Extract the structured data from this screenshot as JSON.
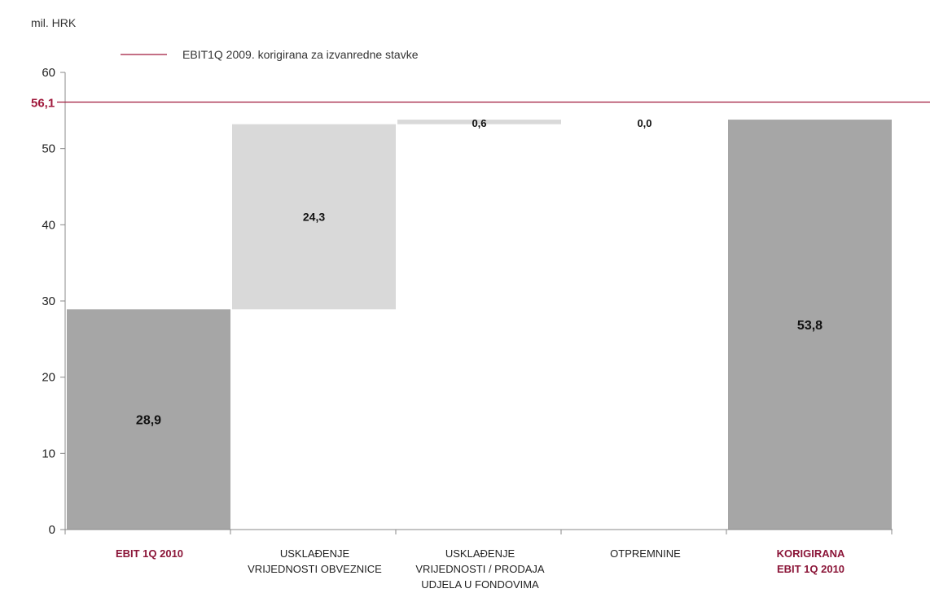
{
  "chart_data": {
    "type": "bar",
    "subtype": "waterfall",
    "unit_label": "mil. HRK",
    "legend": [
      {
        "label": "EBIT1Q 2009. korigirana za izvanredne stavke",
        "color": "#a0193c",
        "kind": "line"
      }
    ],
    "reference_line": {
      "value": 56.1,
      "label": "56,1",
      "color": "#a0193c"
    },
    "ylim": [
      0,
      60
    ],
    "yticks": [
      0,
      10,
      20,
      30,
      40,
      50,
      60
    ],
    "grid": false,
    "categories": [
      {
        "lines": [
          "EBIT 1Q 2010"
        ],
        "highlight": true
      },
      {
        "lines": [
          "USKLAĐENJE",
          "VRIJEDNOSTI OBVEZNICE"
        ],
        "highlight": false
      },
      {
        "lines": [
          "USKLAĐENJE",
          "VRIJEDNOSTI / PRODAJA",
          "UDJELA U FONDOVIMA"
        ],
        "highlight": false
      },
      {
        "lines": [
          "OTPREMNINE"
        ],
        "highlight": false
      },
      {
        "lines": [
          "KORIGIRANA",
          "EBIT 1Q 2010"
        ],
        "highlight": true
      }
    ],
    "bars": [
      {
        "base": 0,
        "value": 28.9,
        "label": "28,9",
        "kind": "total"
      },
      {
        "base": 28.9,
        "value": 24.3,
        "label": "24,3",
        "kind": "delta"
      },
      {
        "base": 53.2,
        "value": 0.6,
        "label": "0,6",
        "kind": "delta"
      },
      {
        "base": 53.8,
        "value": 0.0,
        "label": "0,0",
        "kind": "delta"
      },
      {
        "base": 0,
        "value": 53.8,
        "label": "53,8",
        "kind": "total"
      }
    ],
    "colors": {
      "total": "#a6a6a6",
      "delta": "#d9d9d9",
      "axis": "#888888",
      "highlight_text": "#8b1538",
      "text": "#222222"
    }
  }
}
